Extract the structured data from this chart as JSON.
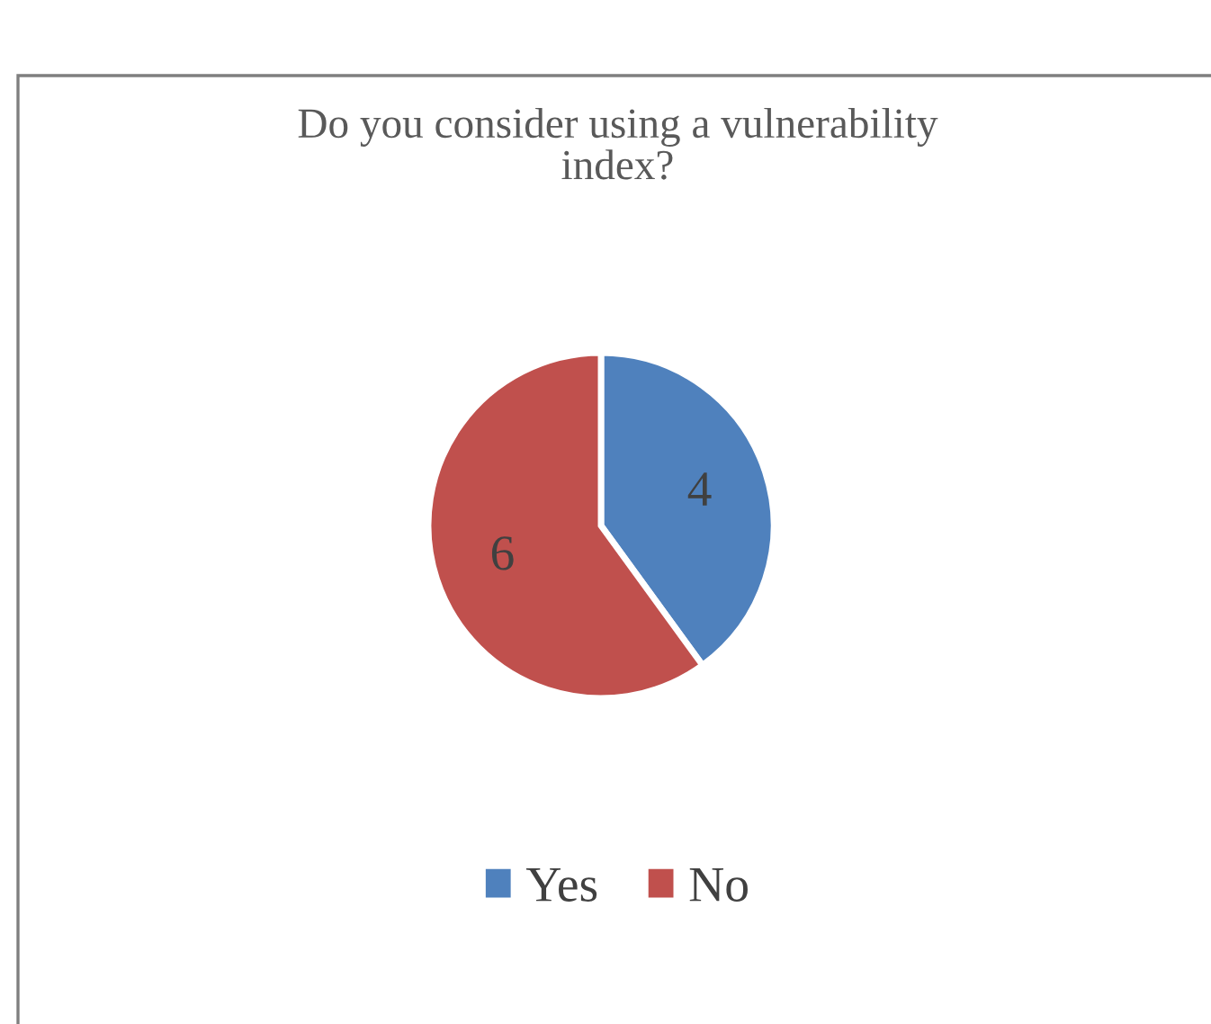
{
  "chart_data": {
    "type": "pie",
    "title": "Do you consider using a vulnerability\nindex?",
    "categories": [
      "Yes",
      "No"
    ],
    "values": [
      4,
      6
    ],
    "colors": [
      "#4f81bd",
      "#c0504d"
    ],
    "data_labels": true,
    "legend": "bottom"
  }
}
